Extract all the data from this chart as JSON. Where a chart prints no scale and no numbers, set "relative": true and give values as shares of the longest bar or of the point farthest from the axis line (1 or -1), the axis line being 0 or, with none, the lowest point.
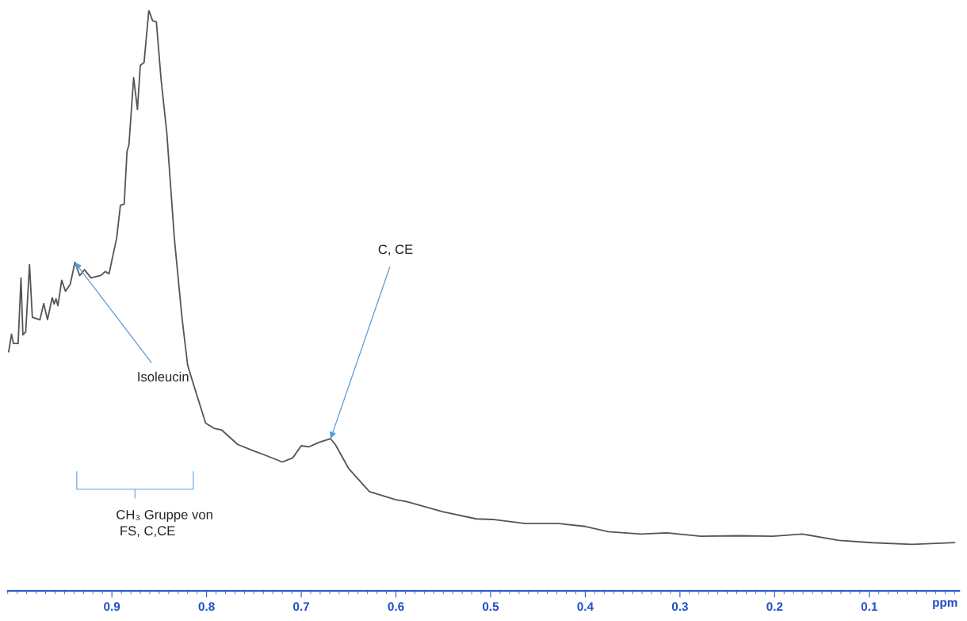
{
  "chart_data": {
    "type": "line",
    "relative": true,
    "xlabel": "ppm",
    "xlim": [
      1.01,
      0.005
    ],
    "xticks": [
      0.9,
      0.8,
      0.7,
      0.6,
      0.5,
      0.4,
      0.3,
      0.2,
      0.1
    ],
    "grid": false,
    "marker": "none",
    "line_style": "solid",
    "tick_labels": "x",
    "series": [
      {
        "color": "#555555",
        "x": [
          1.009,
          1.006,
          1.004,
          0.999,
          0.996,
          0.994,
          0.991,
          0.987,
          0.984,
          0.976,
          0.972,
          0.968,
          0.963,
          0.961,
          0.959,
          0.957,
          0.953,
          0.949,
          0.944,
          0.939,
          0.934,
          0.929,
          0.922,
          0.912,
          0.907,
          0.903,
          0.899,
          0.895,
          0.891,
          0.887,
          0.884,
          0.882,
          0.877,
          0.873,
          0.87,
          0.866,
          0.861,
          0.857,
          0.853,
          0.848,
          0.842,
          0.834,
          0.826,
          0.82,
          0.815,
          0.801,
          0.792,
          0.784,
          0.767,
          0.75,
          0.74,
          0.72,
          0.709,
          0.7,
          0.692,
          0.681,
          0.669,
          0.664,
          0.65,
          0.628,
          0.6,
          0.589,
          0.55,
          0.515,
          0.498,
          0.463,
          0.428,
          0.4,
          0.376,
          0.341,
          0.314,
          0.278,
          0.237,
          0.202,
          0.171,
          0.132,
          0.097,
          0.055,
          0.01
        ],
        "values": [
          0.412,
          0.442,
          0.426,
          0.426,
          0.539,
          0.441,
          0.446,
          0.562,
          0.471,
          0.467,
          0.495,
          0.467,
          0.505,
          0.494,
          0.503,
          0.491,
          0.535,
          0.516,
          0.528,
          0.566,
          0.543,
          0.553,
          0.539,
          0.543,
          0.55,
          0.546,
          0.577,
          0.607,
          0.664,
          0.666,
          0.757,
          0.768,
          0.884,
          0.829,
          0.905,
          0.91,
          1,
          0.982,
          0.98,
          0.88,
          0.789,
          0.607,
          0.471,
          0.389,
          0.362,
          0.289,
          0.28,
          0.277,
          0.252,
          0.241,
          0.235,
          0.222,
          0.229,
          0.25,
          0.248,
          0.256,
          0.262,
          0.252,
          0.211,
          0.171,
          0.157,
          0.154,
          0.136,
          0.124,
          0.123,
          0.116,
          0.116,
          0.111,
          0.102,
          0.098,
          0.1,
          0.094,
          0.095,
          0.094,
          0.098,
          0.087,
          0.083,
          0.08,
          0.083
        ]
      }
    ],
    "annotations": [
      {
        "text": "C, CE",
        "x": 0.669,
        "y": 0.262
      },
      {
        "text": "Isoleucin",
        "x": 0.939,
        "y": 0.566
      },
      "CH₃ Gruppe von\n FS, C,CE"
    ]
  }
}
